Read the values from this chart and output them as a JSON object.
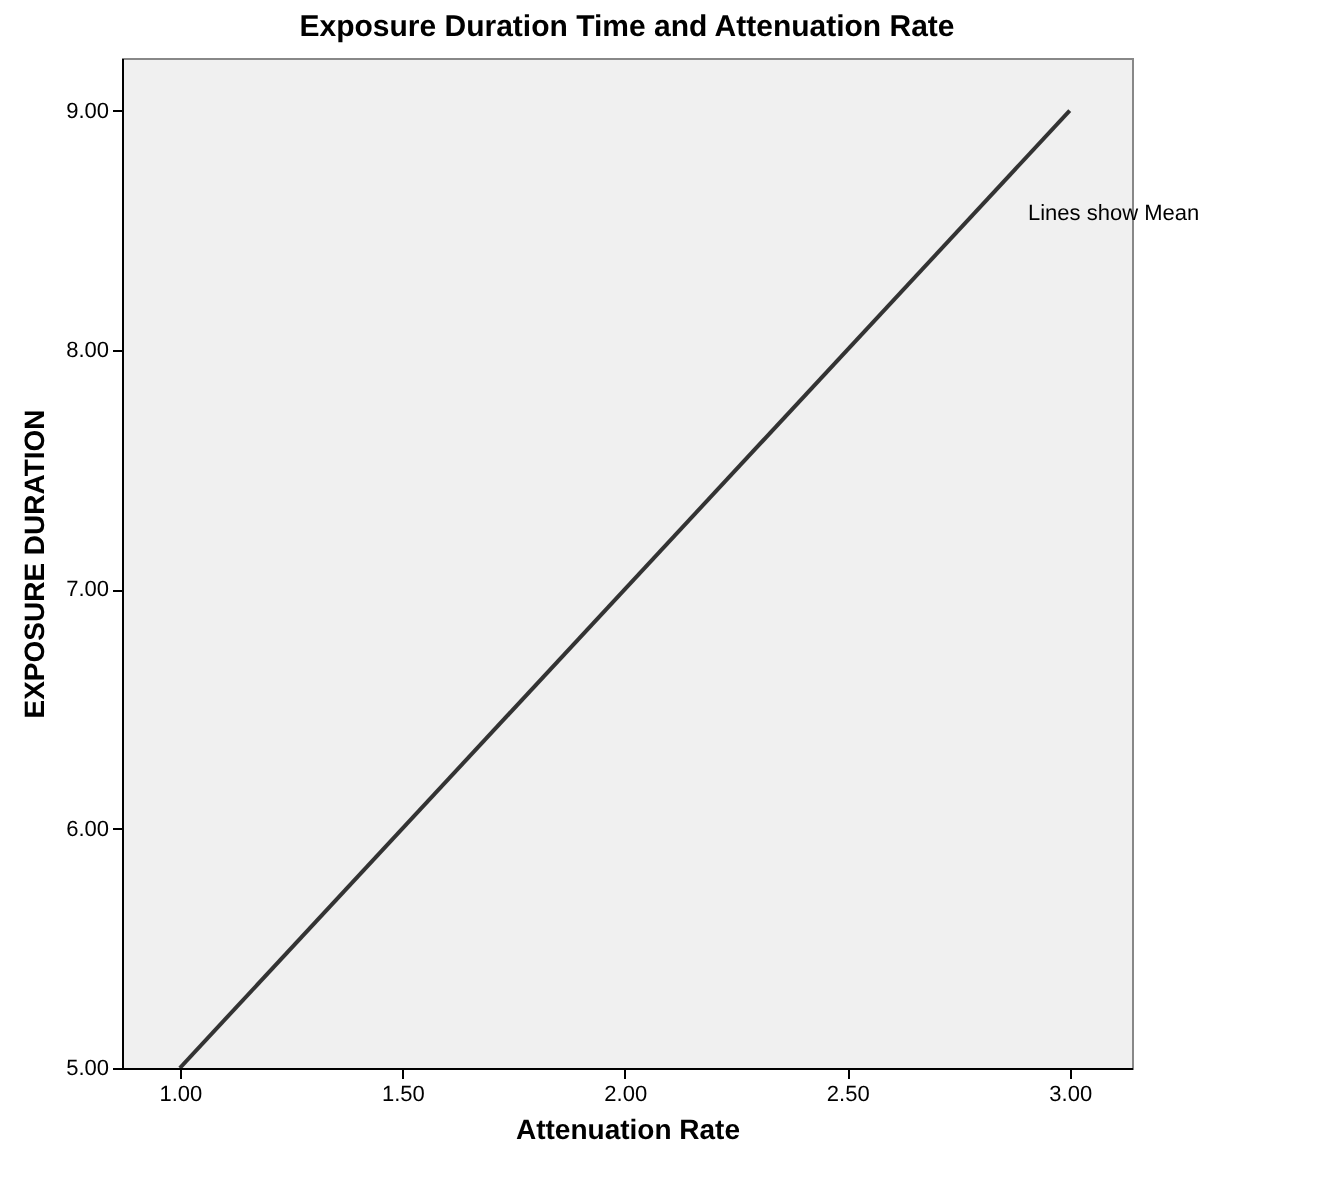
{
  "chart_data": {
    "type": "line",
    "title": "Exposure Duration Time and Attenuation Rate",
    "xlabel": "Attenuation Rate",
    "ylabel": "EXPOSURE DURATION",
    "x": [
      1,
      3
    ],
    "series": [
      {
        "color": "#333333",
        "values": [
          5,
          9
        ]
      }
    ],
    "xlim": [
      0.87,
      3.14
    ],
    "ylim": [
      5,
      9.22
    ],
    "xticks": [
      {
        "value": 1,
        "label": "1.00"
      },
      {
        "value": 1.5,
        "label": "1.50"
      },
      {
        "value": 2,
        "label": "2.00"
      },
      {
        "value": 2.5,
        "label": "2.50"
      },
      {
        "value": 3,
        "label": "3.00"
      }
    ],
    "yticks": [
      {
        "value": 5,
        "label": "5.00"
      },
      {
        "value": 6,
        "label": "6.00"
      },
      {
        "value": 7,
        "label": "7.00"
      },
      {
        "value": 8,
        "label": "8.00"
      },
      {
        "value": 9,
        "label": "9.00"
      }
    ],
    "annotations": [
      "Lines show Mean"
    ],
    "grid": false
  }
}
